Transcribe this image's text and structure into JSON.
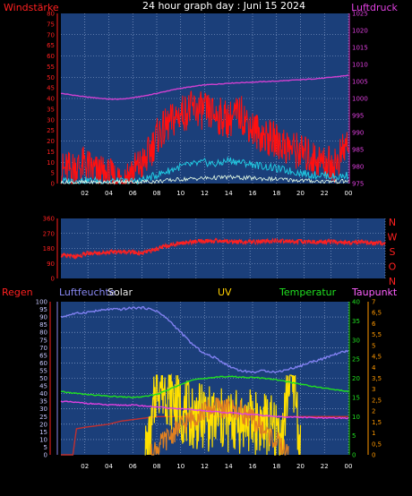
{
  "title": "24 hour graph day : Juni 15 2024",
  "colors": {
    "background": "#000000",
    "panel": "#1b3f7a",
    "grid": "#9bb0d8",
    "wind_axis": "#ff2020",
    "pressure_axis": "#e040e0",
    "dir_axis": "#ff2020",
    "humidity_axis": "#8a8af5",
    "rain_axis": "#ff2020",
    "temp_axis": "#20e020",
    "dew_axis": "#ff60ff",
    "uv_axis": "#ff9900",
    "solar_axis": "#e8e8e8",
    "uv_label": "#ffd000"
  },
  "chart_data": [
    {
      "type": "line",
      "name": "wind-pressure",
      "ylabel_left": "Windstärke",
      "ylabel_right": "Luftdruck",
      "x_ticks": [
        "02",
        "04",
        "06",
        "08",
        "10",
        "12",
        "14",
        "16",
        "18",
        "20",
        "22",
        "00"
      ],
      "ylim_left": [
        0,
        80
      ],
      "y_ticks_left": [
        "0",
        "5",
        "10",
        "15",
        "20",
        "25",
        "30",
        "35",
        "40",
        "45",
        "50",
        "55",
        "60",
        "65",
        "70",
        "75",
        "80"
      ],
      "ylim_right": [
        975,
        1025
      ],
      "y_ticks_right": [
        "975",
        "980",
        "985",
        "990",
        "995",
        "1000",
        "1005",
        "1010",
        "1015",
        "1020",
        "1025"
      ],
      "grid": true,
      "series": [
        {
          "role": "pressure",
          "color": "#d040d0",
          "x": [
            0,
            2,
            4,
            5,
            6,
            7,
            8,
            9,
            10,
            11,
            12,
            13,
            14,
            16,
            18,
            20,
            22,
            24
          ],
          "y": [
            1001.5,
            1000.5,
            999.8,
            999.8,
            1000.2,
            1000.8,
            1001.5,
            1002.3,
            1003,
            1003.5,
            1004,
            1004.2,
            1004.5,
            1004.8,
            1005.1,
            1005.5,
            1006,
            1006.8
          ]
        },
        {
          "role": "wind gust",
          "color": "#ff1010",
          "x": [
            0,
            1,
            2,
            3,
            4,
            5,
            6,
            7,
            8,
            9,
            10,
            11,
            12,
            13,
            14,
            15,
            16,
            17,
            18,
            19,
            20,
            21,
            22,
            23,
            24
          ],
          "y": [
            6,
            7,
            9,
            5,
            3,
            2,
            6,
            10,
            22,
            28,
            33,
            35,
            34,
            32,
            30,
            33,
            26,
            22,
            20,
            17,
            15,
            12,
            10,
            9,
            20
          ]
        },
        {
          "role": "wind average",
          "color": "#20c8e0",
          "x": [
            0,
            2,
            4,
            6,
            7,
            8,
            9,
            10,
            11,
            12,
            13,
            14,
            15,
            16,
            17,
            18,
            19,
            20,
            21,
            22,
            23,
            24
          ],
          "y": [
            1,
            1.5,
            1,
            1,
            2,
            4,
            6,
            8,
            9,
            10,
            9,
            11,
            10,
            9,
            8,
            7,
            6,
            5,
            4,
            4,
            3,
            4
          ]
        },
        {
          "role": "wind low",
          "color": "#e8ffe8",
          "x": [
            0,
            4,
            8,
            10,
            12,
            14,
            16,
            18,
            20,
            22,
            24
          ],
          "y": [
            0.5,
            0.5,
            1,
            2,
            2.5,
            3,
            2.5,
            2,
            1.5,
            1,
            1
          ]
        }
      ]
    },
    {
      "type": "line",
      "name": "wind-direction",
      "ylim": [
        0,
        360
      ],
      "y_ticks": [
        "0",
        "90",
        "180",
        "270",
        "360"
      ],
      "compass": [
        "N",
        "W",
        "S",
        "O",
        "N"
      ],
      "grid": true,
      "series": [
        {
          "role": "direction",
          "color": "#ff2020",
          "x": [
            0,
            1,
            2,
            3,
            4,
            5,
            6,
            7,
            8,
            9,
            10,
            11,
            12,
            13,
            14,
            15,
            16,
            17,
            18,
            19,
            20,
            21,
            22,
            23,
            24
          ],
          "y": [
            140,
            130,
            150,
            155,
            160,
            160,
            150,
            175,
            200,
            215,
            220,
            225,
            225,
            220,
            218,
            222,
            225,
            222,
            220,
            218,
            220,
            215,
            218,
            210,
            215
          ]
        }
      ]
    },
    {
      "type": "line",
      "name": "climate",
      "labels": [
        "Regen",
        "Luftfeuchte",
        "Solar",
        "UV",
        "Temperatur",
        "Taupunkt"
      ],
      "x_ticks": [
        "02",
        "04",
        "06",
        "08",
        "10",
        "12",
        "14",
        "16",
        "18",
        "20",
        "22",
        "00"
      ],
      "ylim_left": [
        0,
        100
      ],
      "y_ticks_left": [
        "0",
        "5",
        "10",
        "15",
        "20",
        "25",
        "30",
        "35",
        "40",
        "45",
        "50",
        "55",
        "60",
        "65",
        "70",
        "75",
        "80",
        "85",
        "90",
        "95",
        "100"
      ],
      "ylim_right_temp": [
        0,
        40
      ],
      "y_ticks_right_temp": [
        "0",
        "5",
        "10",
        "15",
        "20",
        "25",
        "30",
        "35",
        "40"
      ],
      "ylim_right_uv": [
        0,
        7
      ],
      "y_ticks_right_uv": [
        "0",
        "0,5",
        "1",
        "1,5",
        "2",
        "2,5",
        "3",
        "3,5",
        "4",
        "4,5",
        "5",
        "5,5",
        "6",
        "6,5",
        "7"
      ],
      "grid": true,
      "series": [
        {
          "role": "humidity",
          "color": "#8080f0",
          "x": [
            0,
            1,
            2,
            3,
            4,
            5,
            6,
            7,
            8,
            9,
            10,
            11,
            12,
            13,
            14,
            15,
            16,
            17,
            18,
            19,
            20,
            21,
            22,
            23,
            24
          ],
          "y": [
            90,
            92,
            93,
            94,
            95,
            95,
            96,
            96,
            94,
            88,
            80,
            72,
            66,
            63,
            58,
            55,
            54,
            55,
            54,
            56,
            58,
            61,
            63,
            66,
            68
          ]
        },
        {
          "role": "temperature",
          "color": "#20e020",
          "x": [
            0,
            2,
            4,
            6,
            7,
            8,
            9,
            10,
            11,
            12,
            13,
            14,
            15,
            16,
            17,
            18,
            19,
            20,
            21,
            22,
            23,
            24
          ],
          "y": [
            16.5,
            15.8,
            15.3,
            15,
            15.2,
            15.8,
            17,
            18.5,
            19.5,
            20,
            20.3,
            20.5,
            20.3,
            20.2,
            20,
            19.6,
            19,
            18.5,
            17.9,
            17.4,
            17,
            16.5
          ]
        },
        {
          "role": "dew point",
          "color": "#e040e0",
          "x": [
            0,
            2,
            4,
            6,
            8,
            10,
            12,
            14,
            16,
            18,
            20,
            22,
            24
          ],
          "y": [
            14,
            13.5,
            13,
            13,
            12.5,
            12,
            11.5,
            11,
            10.5,
            10,
            9.8,
            9.6,
            9.6
          ]
        },
        {
          "role": "rain",
          "color": "#c03030",
          "x": [
            0,
            1,
            1.3,
            2,
            3,
            4,
            5,
            6,
            7,
            8,
            10,
            12,
            14,
            16,
            18,
            20,
            22,
            24
          ],
          "y": [
            0,
            0,
            17,
            18,
            19,
            20,
            22,
            23,
            24,
            25,
            25,
            25,
            25,
            25,
            25,
            25,
            25,
            25
          ]
        },
        {
          "role": "solar",
          "color": "#ffe000",
          "x": [
            7,
            7.5,
            8,
            9,
            10,
            11,
            12,
            13,
            14,
            15,
            16,
            17,
            18,
            18.5,
            19,
            19.5,
            20
          ],
          "y": [
            0,
            8,
            50,
            40,
            30,
            25,
            25,
            22,
            22,
            22,
            22,
            20,
            15,
            10,
            50,
            48,
            0
          ]
        },
        {
          "role": "uv",
          "color": "#e08020",
          "x": [
            7.5,
            8,
            9,
            10,
            11,
            12,
            13,
            14,
            15,
            16,
            17,
            18,
            19
          ],
          "y": [
            0,
            0.3,
            0.8,
            1.3,
            1.7,
            2,
            2.2,
            2.1,
            2,
            1.6,
            1.1,
            0.6,
            0
          ]
        }
      ]
    }
  ]
}
